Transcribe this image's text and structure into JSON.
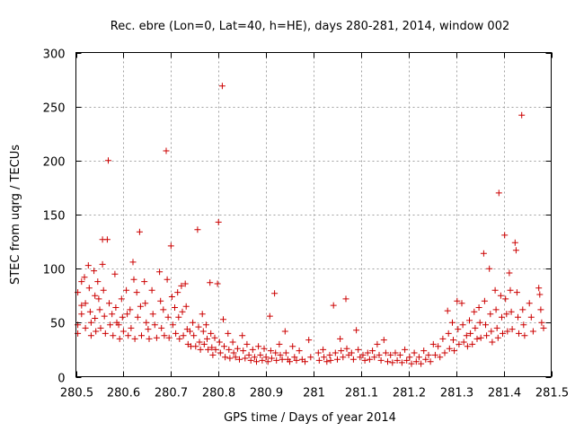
{
  "chart_data": {
    "type": "scatter",
    "title": "Rec. ebre (Lon=0, Lat=40, h=HE), days 280-281, 2014, window 002",
    "xlabel": "GPS time / Days of year 2014",
    "ylabel": "STEC from uqrg / TECUs",
    "xlim": [
      280.5,
      281.5
    ],
    "ylim": [
      0,
      300
    ],
    "xticks": [
      "280.5",
      "280.6",
      "280.7",
      "280.8",
      "280.9",
      "281",
      "281.1",
      "281.2",
      "281.3",
      "281.4",
      "281.5"
    ],
    "xtick_values": [
      280.5,
      280.6,
      280.7,
      280.8,
      280.9,
      281.0,
      281.1,
      281.2,
      281.3,
      281.4,
      281.5
    ],
    "yticks": [
      "0",
      "50",
      "100",
      "150",
      "200",
      "250",
      "300"
    ],
    "ytick_values": [
      0,
      50,
      100,
      150,
      200,
      250,
      300
    ],
    "grid": true,
    "marker": "plus",
    "color": "#cc0000",
    "series": [
      {
        "name": "STEC",
        "points": [
          [
            280.504,
            78
          ],
          [
            280.504,
            48
          ],
          [
            280.504,
            40
          ],
          [
            280.512,
            88
          ],
          [
            280.512,
            66
          ],
          [
            280.512,
            58
          ],
          [
            280.518,
            92
          ],
          [
            280.52,
            68
          ],
          [
            280.52,
            45
          ],
          [
            280.526,
            103
          ],
          [
            280.528,
            82
          ],
          [
            280.53,
            60
          ],
          [
            280.532,
            50
          ],
          [
            280.532,
            38
          ],
          [
            280.538,
            98
          ],
          [
            280.54,
            75
          ],
          [
            280.54,
            54
          ],
          [
            280.542,
            42
          ],
          [
            280.546,
            88
          ],
          [
            280.548,
            72
          ],
          [
            280.55,
            62
          ],
          [
            280.552,
            45
          ],
          [
            280.556,
            127
          ],
          [
            280.556,
            104
          ],
          [
            280.558,
            80
          ],
          [
            280.56,
            56
          ],
          [
            280.562,
            40
          ],
          [
            280.566,
            127
          ],
          [
            280.568,
            200
          ],
          [
            280.57,
            68
          ],
          [
            280.572,
            48
          ],
          [
            280.576,
            58
          ],
          [
            280.578,
            38
          ],
          [
            280.582,
            95
          ],
          [
            280.584,
            64
          ],
          [
            280.586,
            50
          ],
          [
            280.59,
            48
          ],
          [
            280.592,
            35
          ],
          [
            280.596,
            72
          ],
          [
            280.598,
            55
          ],
          [
            280.6,
            42
          ],
          [
            280.606,
            80
          ],
          [
            280.608,
            58
          ],
          [
            280.61,
            38
          ],
          [
            280.614,
            62
          ],
          [
            280.616,
            45
          ],
          [
            280.62,
            106
          ],
          [
            280.622,
            90
          ],
          [
            280.624,
            35
          ],
          [
            280.628,
            78
          ],
          [
            280.63,
            55
          ],
          [
            280.634,
            134
          ],
          [
            280.636,
            65
          ],
          [
            280.638,
            38
          ],
          [
            280.644,
            88
          ],
          [
            280.646,
            68
          ],
          [
            280.648,
            50
          ],
          [
            280.652,
            44
          ],
          [
            280.654,
            35
          ],
          [
            280.66,
            80
          ],
          [
            280.662,
            58
          ],
          [
            280.666,
            48
          ],
          [
            280.67,
            36
          ],
          [
            280.676,
            97
          ],
          [
            280.678,
            70
          ],
          [
            280.68,
            45
          ],
          [
            280.684,
            62
          ],
          [
            280.686,
            38
          ],
          [
            280.69,
            209
          ],
          [
            280.692,
            90
          ],
          [
            280.694,
            55
          ],
          [
            280.696,
            36
          ],
          [
            280.7,
            121
          ],
          [
            280.702,
            74
          ],
          [
            280.704,
            48
          ],
          [
            280.708,
            64
          ],
          [
            280.71,
            40
          ],
          [
            280.714,
            78
          ],
          [
            280.716,
            55
          ],
          [
            280.718,
            35
          ],
          [
            280.722,
            84
          ],
          [
            280.724,
            60
          ],
          [
            280.726,
            38
          ],
          [
            280.73,
            86
          ],
          [
            280.732,
            65
          ],
          [
            280.734,
            44
          ],
          [
            280.736,
            30
          ],
          [
            280.74,
            42
          ],
          [
            280.742,
            28
          ],
          [
            280.746,
            50
          ],
          [
            280.748,
            38
          ],
          [
            280.752,
            28
          ],
          [
            280.756,
            136
          ],
          [
            280.758,
            46
          ],
          [
            280.76,
            32
          ],
          [
            280.762,
            25
          ],
          [
            280.766,
            58
          ],
          [
            280.768,
            42
          ],
          [
            280.77,
            30
          ],
          [
            280.774,
            48
          ],
          [
            280.776,
            35
          ],
          [
            280.778,
            25
          ],
          [
            280.782,
            87
          ],
          [
            280.784,
            40
          ],
          [
            280.786,
            27
          ],
          [
            280.788,
            20
          ],
          [
            280.792,
            36
          ],
          [
            280.794,
            25
          ],
          [
            280.798,
            86
          ],
          [
            280.8,
            143
          ],
          [
            280.802,
            32
          ],
          [
            280.804,
            22
          ],
          [
            280.808,
            269
          ],
          [
            280.81,
            53
          ],
          [
            280.812,
            28
          ],
          [
            280.814,
            18
          ],
          [
            280.82,
            40
          ],
          [
            280.822,
            25
          ],
          [
            280.824,
            17
          ],
          [
            280.83,
            32
          ],
          [
            280.832,
            22
          ],
          [
            280.836,
            18
          ],
          [
            280.84,
            26
          ],
          [
            280.844,
            16
          ],
          [
            280.85,
            38
          ],
          [
            280.852,
            24
          ],
          [
            280.856,
            17
          ],
          [
            280.86,
            30
          ],
          [
            280.864,
            20
          ],
          [
            280.868,
            15
          ],
          [
            280.872,
            25
          ],
          [
            280.876,
            18
          ],
          [
            280.88,
            14
          ],
          [
            280.884,
            28
          ],
          [
            280.888,
            20
          ],
          [
            280.892,
            15
          ],
          [
            280.896,
            26
          ],
          [
            280.9,
            18
          ],
          [
            280.904,
            14
          ],
          [
            280.908,
            56
          ],
          [
            280.91,
            24
          ],
          [
            280.912,
            17
          ],
          [
            280.918,
            77
          ],
          [
            280.92,
            22
          ],
          [
            280.922,
            15
          ],
          [
            280.928,
            30
          ],
          [
            280.93,
            20
          ],
          [
            280.934,
            16
          ],
          [
            280.94,
            42
          ],
          [
            280.942,
            22
          ],
          [
            280.946,
            16
          ],
          [
            280.95,
            14
          ],
          [
            280.956,
            28
          ],
          [
            280.96,
            18
          ],
          [
            280.964,
            15
          ],
          [
            280.97,
            24
          ],
          [
            280.976,
            16
          ],
          [
            280.982,
            14
          ],
          [
            280.99,
            34
          ],
          [
            280.994,
            18
          ],
          [
            281.01,
            22
          ],
          [
            281.012,
            15
          ],
          [
            281.02,
            25
          ],
          [
            281.022,
            18
          ],
          [
            281.028,
            14
          ],
          [
            281.034,
            20
          ],
          [
            281.036,
            15
          ],
          [
            281.042,
            66
          ],
          [
            281.046,
            22
          ],
          [
            281.05,
            16
          ],
          [
            281.056,
            35
          ],
          [
            281.058,
            24
          ],
          [
            281.062,
            18
          ],
          [
            281.068,
            72
          ],
          [
            281.07,
            26
          ],
          [
            281.074,
            20
          ],
          [
            281.08,
            22
          ],
          [
            281.084,
            16
          ],
          [
            281.09,
            43
          ],
          [
            281.094,
            25
          ],
          [
            281.098,
            18
          ],
          [
            281.104,
            20
          ],
          [
            281.108,
            15
          ],
          [
            281.114,
            22
          ],
          [
            281.118,
            16
          ],
          [
            281.124,
            24
          ],
          [
            281.128,
            18
          ],
          [
            281.134,
            30
          ],
          [
            281.138,
            20
          ],
          [
            281.142,
            15
          ],
          [
            281.148,
            34
          ],
          [
            281.152,
            22
          ],
          [
            281.156,
            14
          ],
          [
            281.162,
            20
          ],
          [
            281.166,
            13
          ],
          [
            281.172,
            22
          ],
          [
            281.176,
            15
          ],
          [
            281.182,
            20
          ],
          [
            281.186,
            13
          ],
          [
            281.192,
            25
          ],
          [
            281.196,
            15
          ],
          [
            281.202,
            18
          ],
          [
            281.206,
            12
          ],
          [
            281.212,
            22
          ],
          [
            281.216,
            14
          ],
          [
            281.222,
            18
          ],
          [
            281.226,
            12
          ],
          [
            281.232,
            24
          ],
          [
            281.236,
            16
          ],
          [
            281.242,
            20
          ],
          [
            281.246,
            14
          ],
          [
            281.252,
            30
          ],
          [
            281.256,
            20
          ],
          [
            281.262,
            28
          ],
          [
            281.266,
            18
          ],
          [
            281.272,
            35
          ],
          [
            281.276,
            22
          ],
          [
            281.282,
            61
          ],
          [
            281.284,
            40
          ],
          [
            281.286,
            26
          ],
          [
            281.292,
            50
          ],
          [
            281.294,
            34
          ],
          [
            281.296,
            24
          ],
          [
            281.302,
            70
          ],
          [
            281.304,
            44
          ],
          [
            281.306,
            30
          ],
          [
            281.312,
            68
          ],
          [
            281.314,
            48
          ],
          [
            281.316,
            32
          ],
          [
            281.322,
            38
          ],
          [
            281.324,
            28
          ],
          [
            281.328,
            52
          ],
          [
            281.33,
            40
          ],
          [
            281.334,
            30
          ],
          [
            281.338,
            60
          ],
          [
            281.34,
            45
          ],
          [
            281.344,
            35
          ],
          [
            281.348,
            64
          ],
          [
            281.35,
            50
          ],
          [
            281.352,
            36
          ],
          [
            281.358,
            114
          ],
          [
            281.36,
            70
          ],
          [
            281.362,
            48
          ],
          [
            281.364,
            38
          ],
          [
            281.37,
            100
          ],
          [
            281.372,
            58
          ],
          [
            281.374,
            42
          ],
          [
            281.376,
            32
          ],
          [
            281.382,
            80
          ],
          [
            281.384,
            62
          ],
          [
            281.386,
            45
          ],
          [
            281.388,
            36
          ],
          [
            281.39,
            170
          ],
          [
            281.394,
            75
          ],
          [
            281.396,
            55
          ],
          [
            281.398,
            40
          ],
          [
            281.402,
            131
          ],
          [
            281.404,
            72
          ],
          [
            281.406,
            58
          ],
          [
            281.408,
            42
          ],
          [
            281.412,
            96
          ],
          [
            281.414,
            80
          ],
          [
            281.416,
            60
          ],
          [
            281.418,
            44
          ],
          [
            281.424,
            124
          ],
          [
            281.426,
            117
          ],
          [
            281.428,
            78
          ],
          [
            281.43,
            55
          ],
          [
            281.432,
            40
          ],
          [
            281.438,
            242
          ],
          [
            281.44,
            62
          ],
          [
            281.442,
            48
          ],
          [
            281.444,
            38
          ],
          [
            281.454,
            68
          ],
          [
            281.458,
            55
          ],
          [
            281.462,
            42
          ],
          [
            281.474,
            82
          ],
          [
            281.476,
            76
          ],
          [
            281.478,
            62
          ],
          [
            281.48,
            50
          ],
          [
            281.484,
            45
          ]
        ]
      }
    ]
  }
}
